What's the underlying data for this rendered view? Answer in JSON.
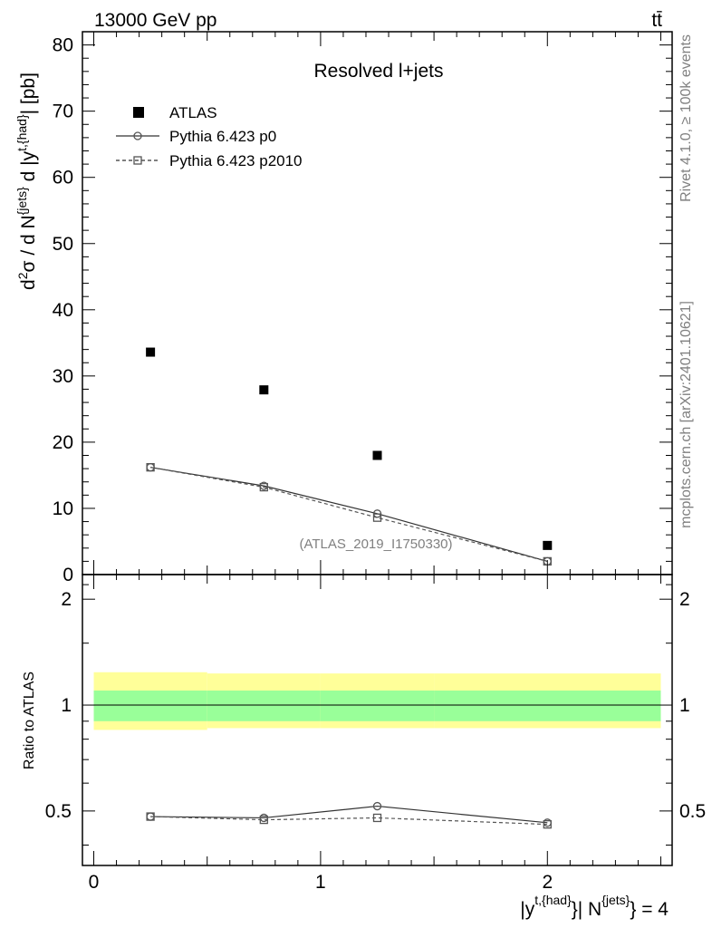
{
  "header": {
    "energy_label": "13000 GeV pp",
    "process_label": "tt̄"
  },
  "side_labels": {
    "rivet": "Rivet 4.1.0, ≥ 100k events",
    "mcplots": "mcplots.cern.ch [arXiv:2401.10621]"
  },
  "chart_data": [
    {
      "type": "scatter",
      "title": "Resolved l+jets",
      "watermark": "(ATLAS_2019_I1750330)",
      "ylabel": "d²σ / d N^{jets} d |y^{t,{had}}| [pb]",
      "xlim": [
        -0.05,
        2.55
      ],
      "ylim": [
        0,
        82
      ],
      "yticks": [
        0,
        10,
        20,
        30,
        40,
        50,
        60,
        70,
        80
      ],
      "ytick_labels": [
        "0",
        "10",
        "20",
        "30",
        "40",
        "50",
        "60",
        "70",
        "80"
      ],
      "legend_position": "top-left",
      "series": [
        {
          "name": "ATLAS",
          "marker": "square-filled",
          "line": "none",
          "x": [
            0.25,
            0.75,
            1.25,
            2.0
          ],
          "y": [
            33.6,
            27.9,
            18.0,
            4.4
          ]
        },
        {
          "name": "Pythia 6.423 p0",
          "marker": "circle-open",
          "line": "solid",
          "x": [
            0.25,
            0.75,
            1.25,
            2.0
          ],
          "y": [
            16.2,
            13.4,
            9.2,
            2.0
          ]
        },
        {
          "name": "Pythia 6.423 p2010",
          "marker": "square-open",
          "line": "dashed",
          "x": [
            0.25,
            0.75,
            1.25,
            2.0
          ],
          "y": [
            16.2,
            13.2,
            8.6,
            2.0
          ]
        }
      ]
    },
    {
      "type": "line",
      "ylabel": "Ratio to ATLAS",
      "xlabel": "|y^{t,{had}}| N^{jets} = 4",
      "xlim": [
        -0.05,
        2.55
      ],
      "ylim": [
        0.35,
        2.35
      ],
      "log_y": true,
      "xticks": [
        0,
        1,
        2
      ],
      "xtick_labels": [
        "0",
        "1",
        "2"
      ],
      "yticks": [
        0.5,
        1,
        2
      ],
      "ytick_labels": [
        "0.5",
        "1",
        "2"
      ],
      "bands": {
        "bin_edges": [
          0.0,
          0.5,
          1.0,
          1.5,
          2.5
        ],
        "inner": {
          "color": "#99ff99",
          "low": [
            0.9,
            0.9,
            0.9,
            0.9
          ],
          "high": [
            1.1,
            1.1,
            1.1,
            1.1
          ]
        },
        "outer": {
          "color": "#ffff99",
          "low": [
            0.85,
            0.86,
            0.86,
            0.86
          ],
          "high": [
            1.24,
            1.23,
            1.23,
            1.23
          ]
        }
      },
      "series": [
        {
          "name": "Pythia 6.423 p0",
          "marker": "circle-open",
          "line": "solid",
          "x": [
            0.25,
            0.75,
            1.25,
            2.0
          ],
          "y": [
            0.482,
            0.478,
            0.516,
            0.463
          ]
        },
        {
          "name": "Pythia 6.423 p2010",
          "marker": "square-open",
          "line": "dashed",
          "x": [
            0.25,
            0.75,
            1.25,
            2.0
          ],
          "y": [
            0.482,
            0.472,
            0.478,
            0.458
          ]
        }
      ]
    }
  ]
}
